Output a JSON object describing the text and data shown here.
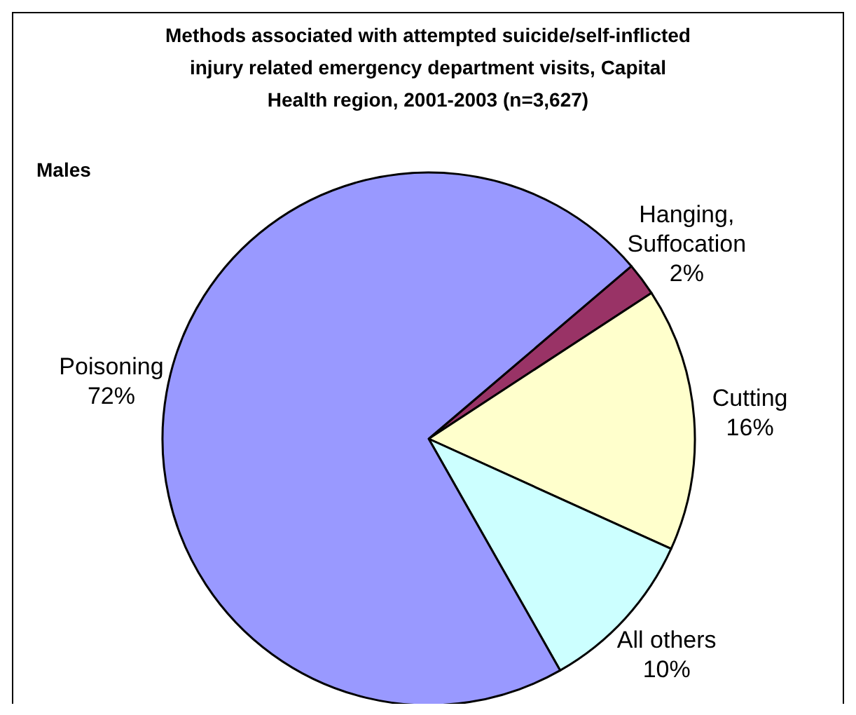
{
  "chart_data": {
    "type": "pie",
    "title": "Methods associated with attempted suicide/self-inflicted injury related emergency department visits, Capital Health region, 2001-2003 (n=3,627)",
    "subtitle": "Males",
    "categories": [
      "Hanging, Suffocation",
      "Cutting",
      "All others",
      "Poisoning"
    ],
    "values": [
      2,
      16,
      10,
      72
    ],
    "colors": [
      "#993366",
      "#ffffcc",
      "#ccffff",
      "#9999ff"
    ],
    "value_labels": [
      "2%",
      "16%",
      "10%",
      "72%"
    ]
  }
}
